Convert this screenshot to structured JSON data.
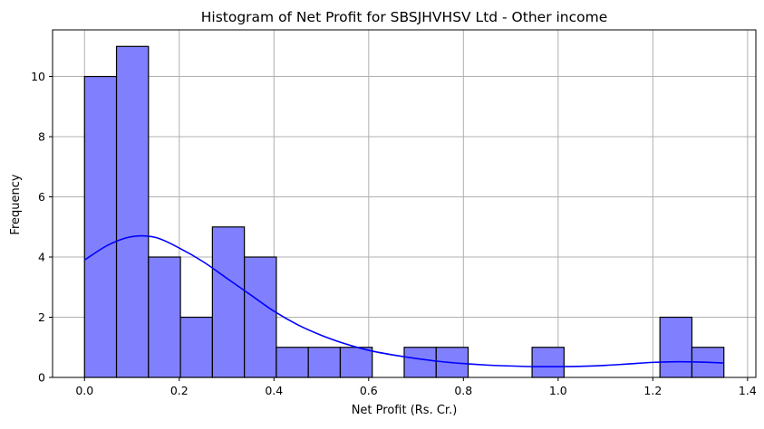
{
  "chart_data": {
    "type": "histogram",
    "title": "Histogram of Net Profit for SBSJHVHSV Ltd - Other income",
    "xlabel": "Net Profit (Rs. Cr.)",
    "ylabel": "Frequency",
    "xlim": [
      -0.0675,
      1.4175
    ],
    "ylim": [
      0,
      11.55
    ],
    "x_ticks": [
      0.0,
      0.2,
      0.4,
      0.6,
      0.8,
      1.0,
      1.2,
      1.4
    ],
    "x_tick_labels": [
      "0.0",
      "0.2",
      "0.4",
      "0.6",
      "0.8",
      "1.0",
      "1.2",
      "1.4"
    ],
    "y_ticks": [
      0,
      2,
      4,
      6,
      8,
      10
    ],
    "y_tick_labels": [
      "0",
      "2",
      "4",
      "6",
      "8",
      "10"
    ],
    "grid": true,
    "bin_start": 0.0,
    "bin_width": 0.0675,
    "counts": [
      10,
      11,
      4,
      2,
      5,
      4,
      1,
      1,
      1,
      0,
      1,
      1,
      0,
      0,
      1,
      0,
      0,
      0,
      2,
      1
    ],
    "kde": {
      "x": [
        0.0,
        0.05,
        0.1,
        0.15,
        0.2,
        0.25,
        0.3,
        0.35,
        0.4,
        0.45,
        0.5,
        0.55,
        0.6,
        0.65,
        0.7,
        0.75,
        0.8,
        0.85,
        0.9,
        0.95,
        1.0,
        1.05,
        1.1,
        1.15,
        1.2,
        1.25,
        1.3,
        1.35
      ],
      "y": [
        3.9,
        4.4,
        4.68,
        4.65,
        4.3,
        3.85,
        3.3,
        2.75,
        2.2,
        1.75,
        1.4,
        1.12,
        0.9,
        0.75,
        0.63,
        0.53,
        0.46,
        0.41,
        0.38,
        0.36,
        0.36,
        0.37,
        0.4,
        0.45,
        0.5,
        0.52,
        0.51,
        0.48
      ]
    },
    "colors": {
      "bar_fill": "#8080ff",
      "bar_edge": "#000000",
      "kde_line": "#0000ff",
      "grid": "#b0b0b0"
    }
  }
}
